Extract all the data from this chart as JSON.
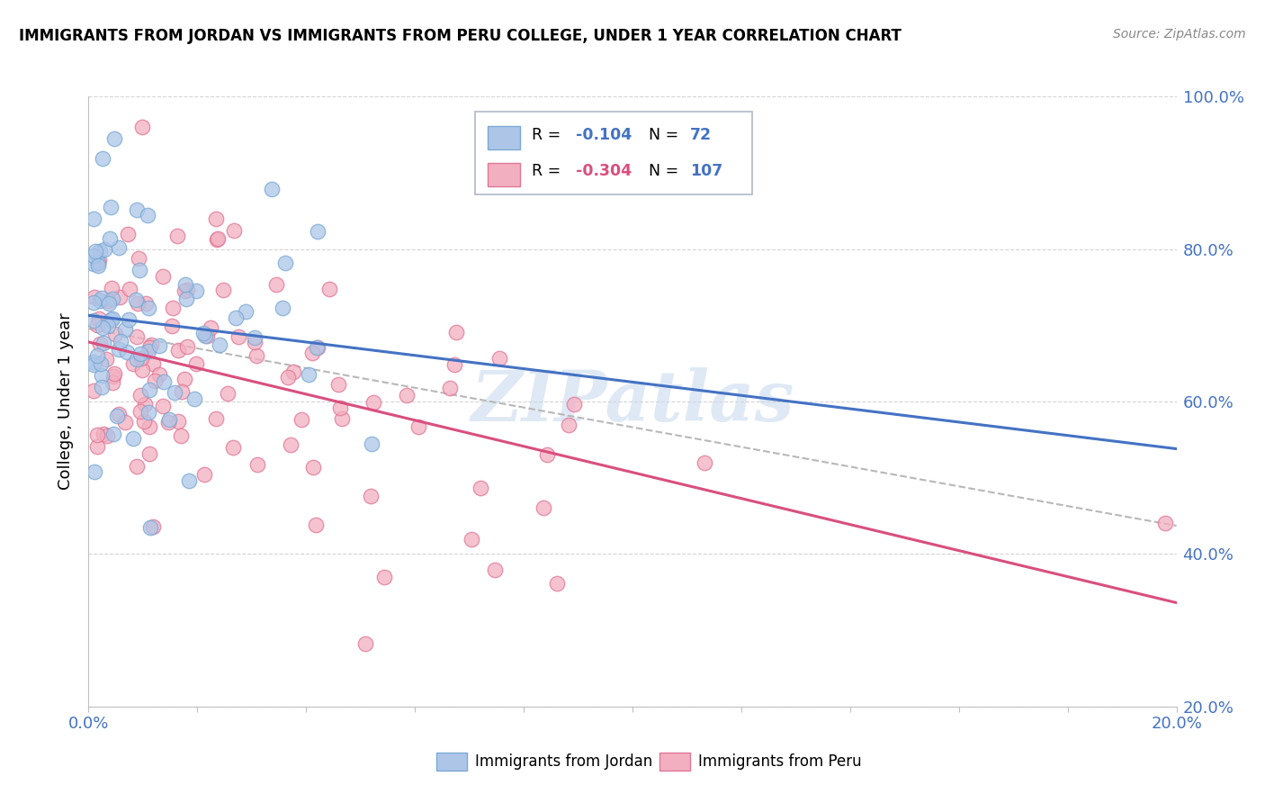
{
  "title": "IMMIGRANTS FROM JORDAN VS IMMIGRANTS FROM PERU COLLEGE, UNDER 1 YEAR CORRELATION CHART",
  "source": "Source: ZipAtlas.com",
  "ylabel": "College, Under 1 year",
  "jordan_label": "Immigrants from Jordan",
  "peru_label": "Immigrants from Peru",
  "jordan_R": -0.104,
  "jordan_N": 72,
  "peru_R": -0.304,
  "peru_N": 107,
  "xlim": [
    0.0,
    0.2
  ],
  "ylim": [
    0.2,
    1.0
  ],
  "jordan_color": "#adc6e8",
  "jordan_edge": "#7baad4",
  "peru_color": "#f2afc0",
  "peru_edge": "#e07898",
  "jordan_line_color": "#4472c4",
  "peru_line_color": "#d94f7e",
  "trend_line_color": "#b8b8b8",
  "watermark": "ZIPatlas",
  "legend_R_jordan_color": "#4472c4",
  "legend_N_jordan_color": "#4472c4",
  "legend_R_peru_color": "#d94f7e",
  "legend_N_peru_color": "#4472c4",
  "background_color": "#ffffff",
  "axis_label_color": "#4472c4",
  "grid_color": "#d0d0d0"
}
